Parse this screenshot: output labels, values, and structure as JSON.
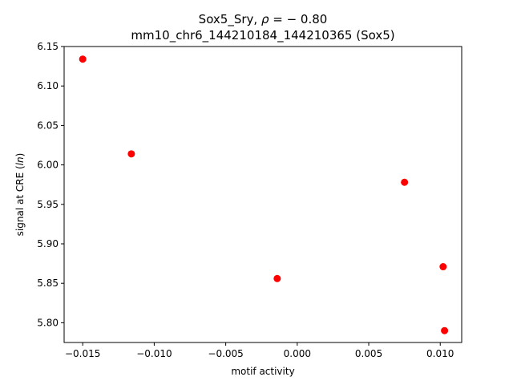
{
  "chart_data": {
    "type": "scatter",
    "title_line1_prefix": "Sox5_Sry, ",
    "title_rho_symbol": "ρ",
    "title_line1_suffix": " = − 0.80",
    "title_line2": "mm10_chr6_144210184_144210365 (Sox5)",
    "xlabel": "motif activity",
    "ylabel_prefix": "signal at CRE (",
    "ylabel_italic": "ln",
    "ylabel_suffix": ")",
    "xlim": [
      -0.0163,
      0.0115
    ],
    "ylim": [
      5.775,
      6.15
    ],
    "xticks": [
      -0.015,
      -0.01,
      -0.005,
      0.0,
      0.005,
      0.01
    ],
    "xtick_labels": [
      "−0.015",
      "−0.010",
      "−0.005",
      "0.000",
      "0.005",
      "0.010"
    ],
    "yticks": [
      5.8,
      5.85,
      5.9,
      5.95,
      6.0,
      6.05,
      6.1,
      6.15
    ],
    "ytick_labels": [
      "5.80",
      "5.85",
      "5.90",
      "5.95",
      "6.00",
      "6.05",
      "6.10",
      "6.15"
    ],
    "points": [
      {
        "x": -0.015,
        "y": 6.134
      },
      {
        "x": -0.0116,
        "y": 6.014
      },
      {
        "x": -0.0014,
        "y": 5.856
      },
      {
        "x": 0.0075,
        "y": 5.978
      },
      {
        "x": 0.0102,
        "y": 5.871
      },
      {
        "x": 0.0103,
        "y": 5.79
      }
    ],
    "marker_color": "#ff0000",
    "grid": false,
    "legend": "none"
  }
}
